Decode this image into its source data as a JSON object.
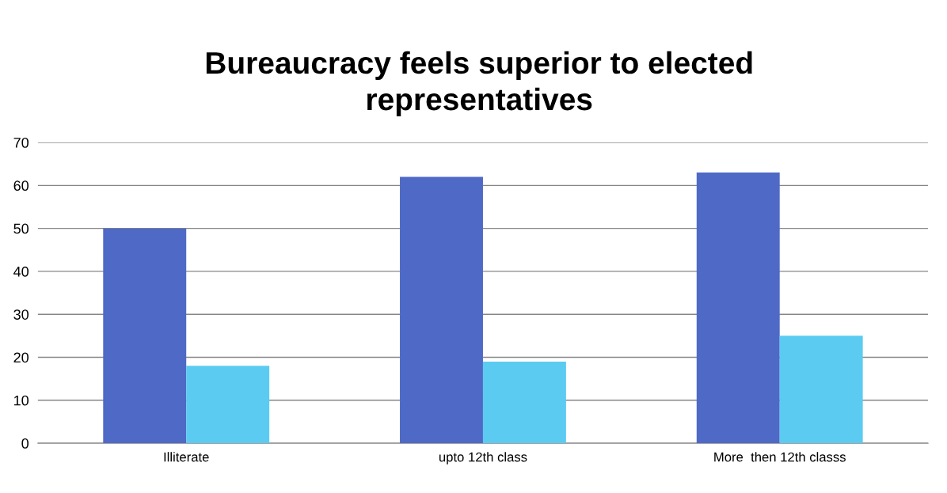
{
  "chart_data": {
    "type": "bar",
    "title": "Bureaucracy feels superior to elected\nrepresentatives",
    "categories": [
      "Illiterate",
      "upto 12th class",
      "More  then 12th classs"
    ],
    "series": [
      {
        "color": "#4f69c6",
        "values": [
          50,
          62,
          63
        ]
      },
      {
        "color": "#5bcbf2",
        "values": [
          18,
          19,
          25
        ]
      }
    ],
    "ylim": [
      0,
      70
    ],
    "yticks": [
      0,
      10,
      20,
      30,
      40,
      50,
      60,
      70
    ],
    "grid": "y",
    "legend": false
  }
}
